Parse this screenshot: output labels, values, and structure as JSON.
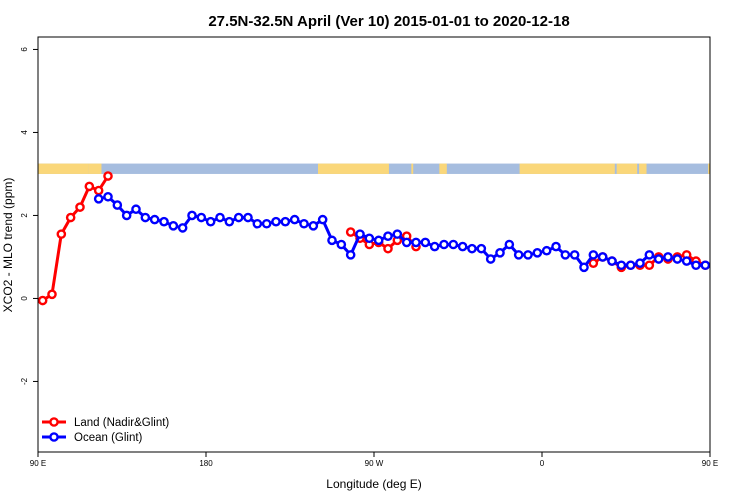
{
  "chart_data": {
    "type": "line",
    "title": "27.5N-32.5N April (Ver 10)   2015-01-01 to 2020-12-18",
    "xlabel": "Longitude (deg E)",
    "ylabel": "XCO2 - MLO trend (ppm)",
    "xlim": [
      90,
      450
    ],
    "ylim": [
      -3.7,
      6.3
    ],
    "x_ticks": [
      {
        "value": 90,
        "label": "90 E"
      },
      {
        "value": 180,
        "label": "180"
      },
      {
        "value": 270,
        "label": "90 W"
      },
      {
        "value": 360,
        "label": "0"
      },
      {
        "value": 450,
        "label": "90 E"
      },
      {
        "value": 540,
        "label": "180"
      }
    ],
    "y_ticks": [
      {
        "value": -2,
        "label": "-2"
      },
      {
        "value": 0,
        "label": "0"
      },
      {
        "value": 2,
        "label": "2"
      },
      {
        "value": 4,
        "label": "4"
      },
      {
        "value": 6,
        "label": "6"
      }
    ],
    "land_sea_strip": {
      "y_range": [
        3.0,
        3.25
      ],
      "ocean_color": "#a6bddf",
      "land_color": "#fad77a",
      "land_x_ranges": [
        [
          90,
          117
        ],
        [
          117,
          124
        ],
        [
          240,
          270
        ],
        [
          270,
          278
        ],
        [
          290,
          291
        ],
        [
          305,
          309
        ],
        [
          348,
          399
        ],
        [
          400,
          411
        ],
        [
          412,
          416
        ],
        [
          449,
          455
        ]
      ]
    },
    "series": [
      {
        "name": "Land (Nadir&Glint)",
        "color": "#ff0000",
        "x": [
          92.5,
          97.5,
          102.5,
          107.5,
          112.5,
          117.5,
          122.5,
          127.5,
          257.5,
          262.5,
          267.5,
          272.5,
          277.5,
          282.5,
          287.5,
          292.5,
          387.5,
          392.5,
          397.5,
          402.5,
          407.5,
          412.5,
          417.5,
          422.5,
          427.5,
          432.5,
          437.5,
          442.5,
          447.5,
          452.5,
          457.5,
          462.5,
          467.5,
          472.5,
          477.5,
          482.5,
          487.5,
          492.5,
          497.5
        ],
        "y": [
          -0.05,
          0.1,
          1.55,
          1.95,
          2.2,
          2.7,
          2.6,
          2.95,
          1.6,
          1.45,
          1.3,
          1.35,
          1.2,
          1.4,
          1.5,
          1.25,
          0.85,
          1.0,
          0.9,
          0.75,
          0.8,
          0.8,
          0.8,
          1.0,
          0.95,
          1.0,
          1.05,
          0.9,
          0.8,
          0.8,
          0.85,
          1.05,
          0.95,
          -0.1,
          -0.15,
          -0.05,
          0.1,
          1.55,
          1.95
        ]
      },
      {
        "name": "Ocean (Glint)",
        "color": "#0000ff",
        "x": [
          122.5,
          127.5,
          132.5,
          137.5,
          142.5,
          147.5,
          152.5,
          157.5,
          162.5,
          167.5,
          172.5,
          177.5,
          182.5,
          187.5,
          192.5,
          197.5,
          202.5,
          207.5,
          212.5,
          217.5,
          222.5,
          227.5,
          232.5,
          237.5,
          242.5,
          247.5,
          252.5,
          257.5,
          262.5,
          267.5,
          272.5,
          277.5,
          282.5,
          287.5,
          292.5,
          297.5,
          302.5,
          307.5,
          312.5,
          317.5,
          322.5,
          327.5,
          332.5,
          337.5,
          342.5,
          347.5,
          352.5,
          357.5,
          362.5,
          367.5,
          372.5,
          377.5,
          382.5,
          387.5,
          392.5,
          397.5,
          402.5,
          407.5,
          412.5,
          417.5,
          422.5,
          427.5,
          432.5,
          437.5,
          442.5,
          447.5
        ],
        "y": [
          2.4,
          2.45,
          2.25,
          2.0,
          2.15,
          1.95,
          1.9,
          1.85,
          1.75,
          1.7,
          2.0,
          1.95,
          1.85,
          1.95,
          1.85,
          1.95,
          1.95,
          1.8,
          1.8,
          1.85,
          1.85,
          1.9,
          1.8,
          1.75,
          1.9,
          1.4,
          1.3,
          1.05,
          1.55,
          1.45,
          1.4,
          1.5,
          1.55,
          1.35,
          1.35,
          1.35,
          1.25,
          1.3,
          1.3,
          1.25,
          1.2,
          1.2,
          0.95,
          1.1,
          1.3,
          1.05,
          1.05,
          1.1,
          1.15,
          1.25,
          1.05,
          1.05,
          0.75,
          1.05,
          1.0,
          0.9,
          0.8,
          0.8,
          0.85,
          1.05,
          0.95,
          1.0,
          0.95,
          0.9,
          0.8,
          0.8
        ]
      }
    ],
    "legend_position": "bottom-left",
    "grid": false
  }
}
